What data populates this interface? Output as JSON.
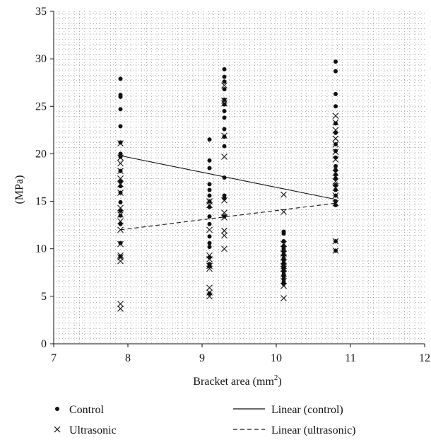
{
  "chart_data": {
    "type": "scatter",
    "title": "",
    "xlabel": "Bracket area (mm",
    "xlabel_sup": "2",
    "xlabel_close": ")",
    "ylabel": "(MPa)",
    "xlim": [
      7,
      12
    ],
    "ylim": [
      0,
      35
    ],
    "x_ticks": [
      7,
      8,
      9,
      10,
      11,
      12
    ],
    "y_ticks": [
      0,
      5,
      10,
      15,
      20,
      25,
      30,
      35
    ],
    "grid": "dotted",
    "legend_position": "bottom",
    "series": [
      {
        "name": "Control",
        "marker": "dot",
        "x": [
          7.9,
          7.9,
          7.9,
          7.9,
          7.9,
          7.9,
          7.9,
          7.9,
          7.9,
          7.9,
          7.9,
          7.9,
          7.9,
          7.9,
          7.9,
          7.9,
          7.9,
          7.9,
          9.1,
          9.1,
          9.1,
          9.1,
          9.1,
          9.1,
          9.1,
          9.1,
          9.1,
          9.1,
          9.1,
          9.1,
          9.1,
          9.1,
          9.1,
          9.1,
          9.1,
          9.3,
          9.3,
          9.3,
          9.3,
          9.3,
          9.3,
          9.3,
          9.3,
          9.3,
          9.3,
          9.3,
          9.3,
          9.3,
          9.3,
          9.3,
          10.1,
          10.1,
          10.1,
          10.1,
          10.1,
          10.1,
          10.1,
          10.1,
          10.1,
          10.1,
          10.1,
          10.1,
          10.1,
          10.1,
          10.1,
          10.1,
          10.1,
          10.1,
          10.8,
          10.8,
          10.8,
          10.8,
          10.8,
          10.8,
          10.8,
          10.8,
          10.8,
          10.8,
          10.8,
          10.8,
          10.8,
          10.8,
          10.8,
          10.8,
          10.8,
          10.8,
          10.8,
          10.8
        ],
        "y": [
          27.9,
          26.2,
          26.0,
          24.7,
          22.9,
          21.2,
          20.0,
          19.7,
          18.2,
          17.1,
          16.6,
          15.9,
          14.9,
          14.0,
          13.5,
          12.6,
          10.6,
          9.2,
          21.5,
          19.3,
          18.5,
          16.8,
          16.2,
          15.6,
          15.0,
          14.4,
          13.4,
          12.6,
          11.3,
          10.6,
          10.2,
          9.1,
          8.4,
          8.2,
          5.3,
          28.9,
          28.1,
          27.6,
          26.8,
          25.7,
          25.2,
          24.5,
          23.8,
          22.6,
          21.8,
          20.8,
          17.5,
          15.6,
          15.3,
          13.4,
          11.8,
          11.6,
          10.8,
          10.3,
          10.0,
          9.7,
          9.4,
          9.0,
          8.8,
          8.5,
          8.2,
          7.9,
          7.6,
          7.3,
          7.1,
          6.8,
          6.5,
          6.3,
          29.7,
          28.7,
          26.3,
          25.0,
          23.2,
          22.2,
          21.0,
          20.3,
          19.6,
          18.7,
          18.3,
          17.8,
          17.4,
          16.7,
          16.2,
          15.6,
          15.0,
          14.6,
          10.8,
          9.8
        ]
      },
      {
        "name": "Ultrasonic",
        "marker": "x",
        "x": [
          7.9,
          7.9,
          7.9,
          7.9,
          7.9,
          7.9,
          7.9,
          7.9,
          7.9,
          7.9,
          7.9,
          7.9,
          7.9,
          7.9,
          7.9,
          7.9,
          7.9,
          9.1,
          9.1,
          9.1,
          9.1,
          9.1,
          9.1,
          9.1,
          9.1,
          9.1,
          9.1,
          9.3,
          9.3,
          9.3,
          9.3,
          9.3,
          9.3,
          9.3,
          9.3,
          9.3,
          9.3,
          9.3,
          10.1,
          10.1,
          10.1,
          10.1,
          10.1,
          10.1,
          10.1,
          10.1,
          10.1,
          10.1,
          10.1,
          10.1,
          10.1,
          10.8,
          10.8,
          10.8,
          10.8,
          10.8,
          10.8,
          10.8,
          10.8,
          10.8,
          10.8,
          10.8,
          10.8,
          10.8,
          10.8
        ],
        "y": [
          21.1,
          19.6,
          19.0,
          18.2,
          17.4,
          16.8,
          15.9,
          14.3,
          13.6,
          12.9,
          12.0,
          10.5,
          9.3,
          9.1,
          8.7,
          4.2,
          3.7,
          15.0,
          14.6,
          12.0,
          9.3,
          8.9,
          8.2,
          7.9,
          5.9,
          5.4,
          5.0,
          27.2,
          25.6,
          25.3,
          21.9,
          19.7,
          15.1,
          13.8,
          13.3,
          11.9,
          11.4,
          10.0,
          15.7,
          13.9,
          10.5,
          10.0,
          9.5,
          9.1,
          8.6,
          8.2,
          7.9,
          7.4,
          6.6,
          6.1,
          4.8,
          24.0,
          23.3,
          22.5,
          21.6,
          21.0,
          20.2,
          19.4,
          18.0,
          17.1,
          16.4,
          15.6,
          14.8,
          10.8,
          9.8
        ]
      }
    ],
    "trendlines": [
      {
        "name": "Linear (control)",
        "style": "solid",
        "x": [
          7.9,
          10.8
        ],
        "y": [
          19.8,
          15.2
        ]
      },
      {
        "name": "Linear (ultrasonic)",
        "style": "dashed",
        "x": [
          7.9,
          10.8
        ],
        "y": [
          12.0,
          14.8
        ]
      }
    ],
    "legend": {
      "control": "Control",
      "ultrasonic": "Ultrasonic",
      "linear_control": "Linear (control)",
      "linear_ultrasonic": "Linear (ultrasonic)"
    }
  }
}
